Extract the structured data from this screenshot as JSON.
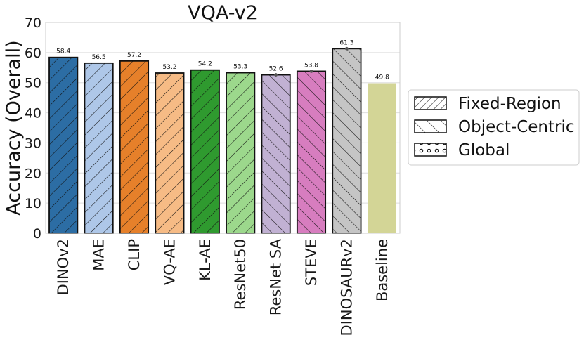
{
  "chart_data": {
    "type": "bar",
    "title": "VQA-v2",
    "xlabel": "",
    "ylabel": "Accuracy (Overall)",
    "ylim": [
      0,
      70
    ],
    "yticks": [
      0,
      10,
      20,
      30,
      40,
      50,
      60,
      70
    ],
    "grid": true,
    "legend_position": "right",
    "categories": [
      "DINOv2",
      "MAE",
      "CLIP",
      "VQ-AE",
      "KL-AE",
      "ResNet50",
      "ResNet SA",
      "STEVE",
      "DINOSAURv2",
      "Baseline"
    ],
    "values": [
      58.4,
      56.5,
      57.2,
      53.2,
      54.2,
      53.3,
      52.6,
      53.8,
      61.3,
      49.8
    ],
    "value_labels": [
      "58.4",
      "56.5",
      "57.2",
      "53.2",
      "54.2",
      "53.3",
      "52.6",
      "53.8",
      "61.3",
      "49.8"
    ],
    "colors": [
      "#2c6da4",
      "#aec7e8",
      "#e6802a",
      "#f6bb85",
      "#2f9a2f",
      "#9cd88c",
      "#c1b1d3",
      "#d77dbf",
      "#c5c5c5",
      "#d3d596"
    ],
    "hatches": [
      "fixed",
      "fixed",
      "fixed",
      "fixed",
      "fixed",
      "fixed",
      "object",
      "object",
      "object",
      "none"
    ],
    "error_bars": [
      null,
      null,
      null,
      null,
      null,
      null,
      0.4,
      0.3,
      0.2,
      null
    ],
    "legend": [
      {
        "label": "Fixed-Region",
        "hatch": "fixed"
      },
      {
        "label": "Object-Centric",
        "hatch": "object"
      },
      {
        "label": "Global",
        "hatch": "global"
      }
    ]
  }
}
